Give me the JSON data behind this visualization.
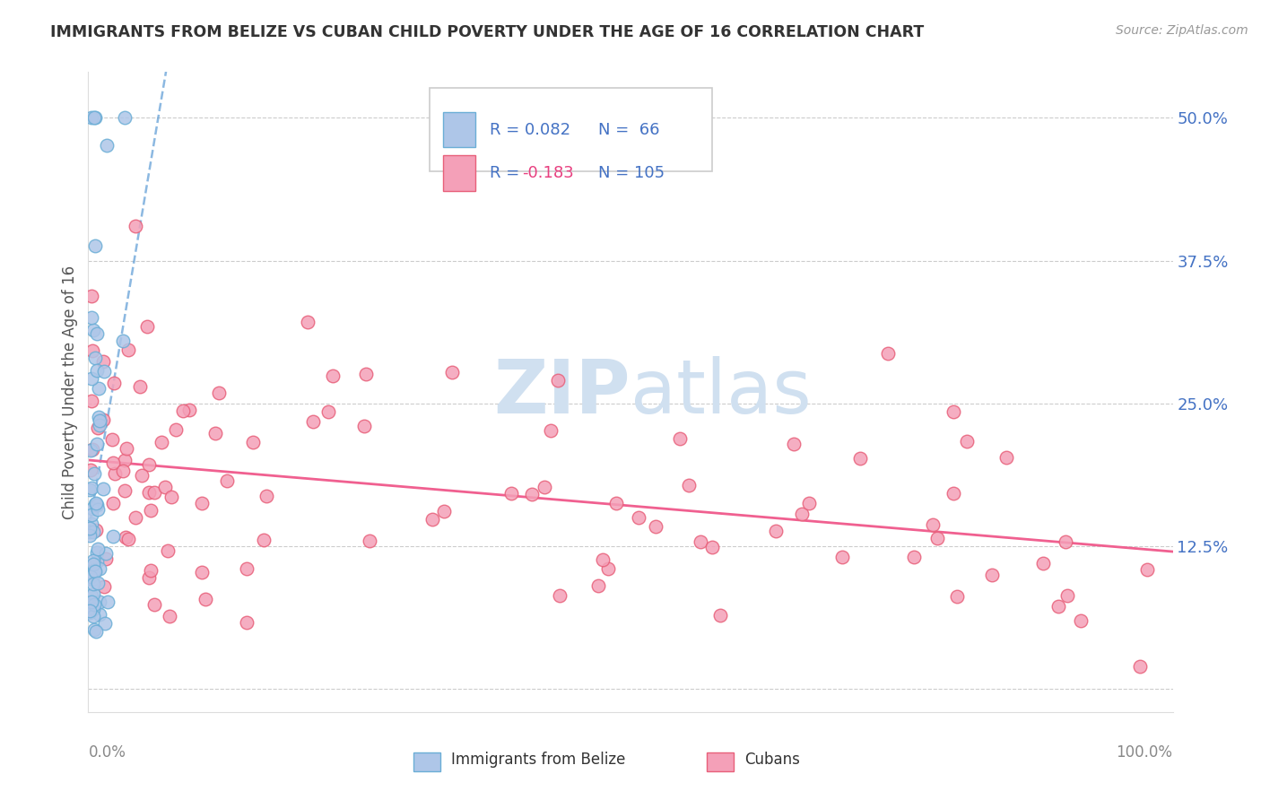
{
  "title": "IMMIGRANTS FROM BELIZE VS CUBAN CHILD POVERTY UNDER THE AGE OF 16 CORRELATION CHART",
  "source": "Source: ZipAtlas.com",
  "ylabel": "Child Poverty Under the Age of 16",
  "ytick_vals": [
    0.0,
    0.125,
    0.25,
    0.375,
    0.5
  ],
  "ytick_labels": [
    "",
    "12.5%",
    "25.0%",
    "37.5%",
    "50.0%"
  ],
  "xlim": [
    0.0,
    1.0
  ],
  "ylim": [
    -0.02,
    0.54
  ],
  "belize_color": "#aec6e8",
  "belize_edge": "#6baed6",
  "cuban_color": "#f4a0b8",
  "cuban_edge": "#e8607a",
  "trend_belize_color": "#5b9bd5",
  "trend_cuban_color": "#f06090",
  "watermark_color": "#d0e0f0",
  "background_color": "#ffffff",
  "title_color": "#333333",
  "grid_color": "#cccccc",
  "label_color": "#4472c4",
  "legend_box_color": "#e8e8e8",
  "bottom_legend_label1": "Immigrants from Belize",
  "bottom_legend_label2": "Cubans"
}
